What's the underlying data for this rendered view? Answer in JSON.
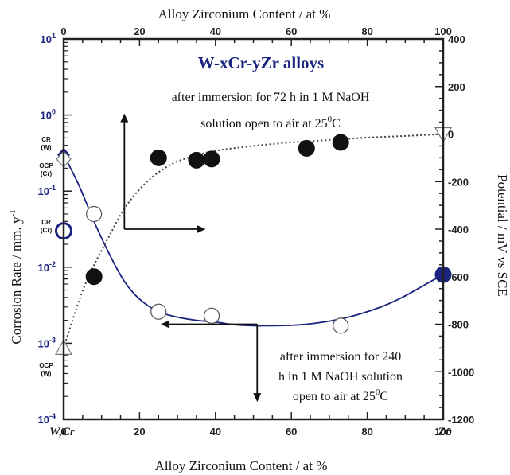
{
  "chart_data": {
    "type": "scatter",
    "title": "W-xCr-yZr alloys",
    "xlabel_top": "Alloy Zirconium Content / at %",
    "xlabel_bottom": "Alloy Zirconium Content / at %",
    "ylabel_left": "Corrosion Rate / mm. y",
    "ylabel_left_sup": "-1",
    "ylabel_right": "Potential / mV vs SCE",
    "xlim": [
      0,
      100
    ],
    "ylim_left": [
      0.0001,
      10
    ],
    "ylim_left_scale": "log",
    "ylim_right": [
      -1200,
      400
    ],
    "x_ticks": [
      "0",
      "20",
      "40",
      "60",
      "80",
      "100"
    ],
    "y_left_ticks": [
      {
        "base": "10",
        "exp": "1"
      },
      {
        "base": "10",
        "exp": "0"
      },
      {
        "base": "10",
        "exp": "-1"
      },
      {
        "base": "10",
        "exp": "-2"
      },
      {
        "base": "10",
        "exp": "-3"
      },
      {
        "base": "10",
        "exp": "-4"
      }
    ],
    "y_right_ticks": [
      "400",
      "200",
      "0",
      "-200",
      "-400",
      "-600",
      "-800",
      "-1000",
      "-1200"
    ],
    "corner_left": "W,Cr",
    "corner_right": "Zr",
    "annotation_top": [
      "after immersion for 72 h in 1 M NaOH",
      "solution open to air at 25",
      "0",
      "C"
    ],
    "annotation_bottom": [
      "after immersion for 240",
      "h in 1 M NaOH solution",
      "open to air at 25",
      "0",
      "C"
    ],
    "point_labels": {
      "cr_w": [
        "CR",
        "(W)"
      ],
      "ocp_cr": [
        "OCP",
        "(Cr)"
      ],
      "cr_cr": [
        "CR",
        "(Cr)"
      ],
      "ocp_w": [
        "OCP",
        "(W)"
      ]
    },
    "series": [
      {
        "axis": "right",
        "marker": "filled-circle",
        "color": "#111111",
        "x": [
          8,
          25,
          35,
          39,
          64,
          73
        ],
        "y": [
          -600,
          -100,
          -110,
          -105,
          -60,
          -35
        ]
      },
      {
        "axis": "left",
        "marker": "open-circle",
        "color": "#111111",
        "x": [
          8,
          25,
          39,
          73
        ],
        "y": [
          0.05,
          0.0026,
          0.0023,
          0.0017
        ]
      }
    ],
    "reference_points": [
      {
        "id": "cr_w",
        "axis": "left",
        "marker": "filled-diamond",
        "color": "#1a237e",
        "x": 0,
        "y": 0.3
      },
      {
        "id": "ocp_cr",
        "axis": "right",
        "marker": "open-diamond",
        "color": "#111111",
        "x": 0,
        "y": -105
      },
      {
        "id": "cr_cr",
        "axis": "left",
        "marker": "open-circle-blue",
        "color": "#1a237e",
        "x": 0,
        "y": 0.03
      },
      {
        "id": "ocp_w",
        "axis": "right",
        "marker": "open-triangle",
        "color": "#111111",
        "x": 0,
        "y": -900
      },
      {
        "id": "cr_zr",
        "axis": "left",
        "marker": "filled-circle",
        "color": "#1a237e",
        "x": 100,
        "y": 0.008
      },
      {
        "id": "ocp_zr",
        "axis": "right",
        "marker": "open-triangle-down",
        "color": "#111111",
        "x": 100,
        "y": 0
      }
    ],
    "fit_curves": [
      {
        "axis": "left",
        "style": "solid",
        "color": "#1a237e",
        "x": [
          0,
          4,
          8,
          12,
          16,
          20,
          25,
          30,
          35,
          40,
          45,
          50,
          55,
          60,
          65,
          70,
          75,
          80,
          85,
          90,
          95,
          100
        ],
        "y": [
          0.3,
          0.12,
          0.04,
          0.015,
          0.0065,
          0.0038,
          0.0026,
          0.0022,
          0.002,
          0.0019,
          0.00175,
          0.0017,
          0.0017,
          0.00172,
          0.0018,
          0.00195,
          0.0022,
          0.0026,
          0.0032,
          0.0042,
          0.0058,
          0.008
        ]
      },
      {
        "axis": "right",
        "style": "dotted",
        "color": "#444444",
        "x": [
          0,
          3,
          6,
          9,
          12,
          15,
          18,
          22,
          26,
          30,
          35,
          40,
          50,
          60,
          70,
          80,
          90,
          100
        ],
        "y": [
          -900,
          -750,
          -620,
          -520,
          -430,
          -340,
          -270,
          -200,
          -150,
          -115,
          -90,
          -70,
          -50,
          -35,
          -25,
          -15,
          -8,
          0
        ]
      }
    ],
    "arrows": [
      {
        "axis": "right",
        "direction": "up",
        "x": 16,
        "y_from": -400,
        "y_to": 80
      },
      {
        "axis": "right",
        "direction": "right",
        "y": -400,
        "x_from": 16,
        "x_to": 37
      },
      {
        "axis": "right",
        "direction": "left",
        "y": -800,
        "x_from": 51,
        "x_to": 26
      },
      {
        "axis": "right",
        "direction": "down",
        "x": 51,
        "y_from": -800,
        "y_to": -1120
      }
    ]
  }
}
